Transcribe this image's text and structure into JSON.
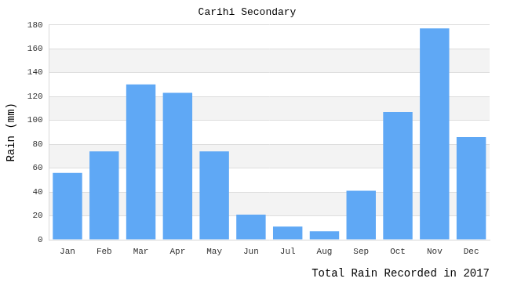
{
  "chart_data": {
    "type": "bar",
    "title": "Carihi Secondary",
    "ylabel": "Rain (mm)",
    "xlabel": "Total Rain Recorded in 2017",
    "categories": [
      "Jan",
      "Feb",
      "Mar",
      "Apr",
      "May",
      "Jun",
      "Jul",
      "Aug",
      "Sep",
      "Oct",
      "Nov",
      "Dec"
    ],
    "values": [
      56,
      74,
      130,
      123,
      74,
      21,
      11,
      7,
      41,
      107,
      177,
      86
    ],
    "color": "#5fa8f5",
    "ylim": [
      0,
      180
    ],
    "yticks": [
      0,
      20,
      40,
      60,
      80,
      100,
      120,
      140,
      160,
      180
    ],
    "grid": true
  }
}
